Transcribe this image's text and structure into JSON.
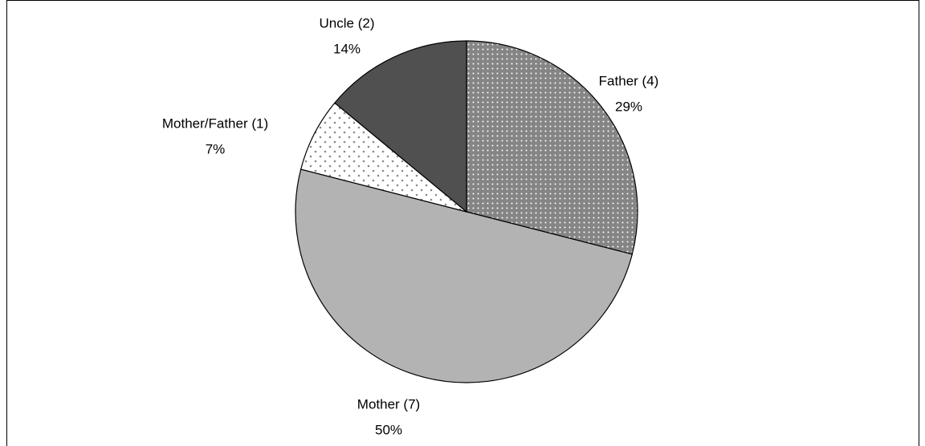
{
  "chart_data": {
    "type": "pie",
    "categories": [
      "Father (4)",
      "Mother (7)",
      "Mother/Father (1)",
      "Uncle (2)"
    ],
    "values": [
      29,
      50,
      7,
      14
    ],
    "value_labels": [
      "29%",
      "50%",
      "7%",
      "14%"
    ],
    "colors": [
      "#858585",
      "#b3b3b3",
      "#ffffff",
      "#505050"
    ],
    "patterns": [
      "dots",
      "solid",
      "sparse-dots",
      "solid"
    ]
  }
}
